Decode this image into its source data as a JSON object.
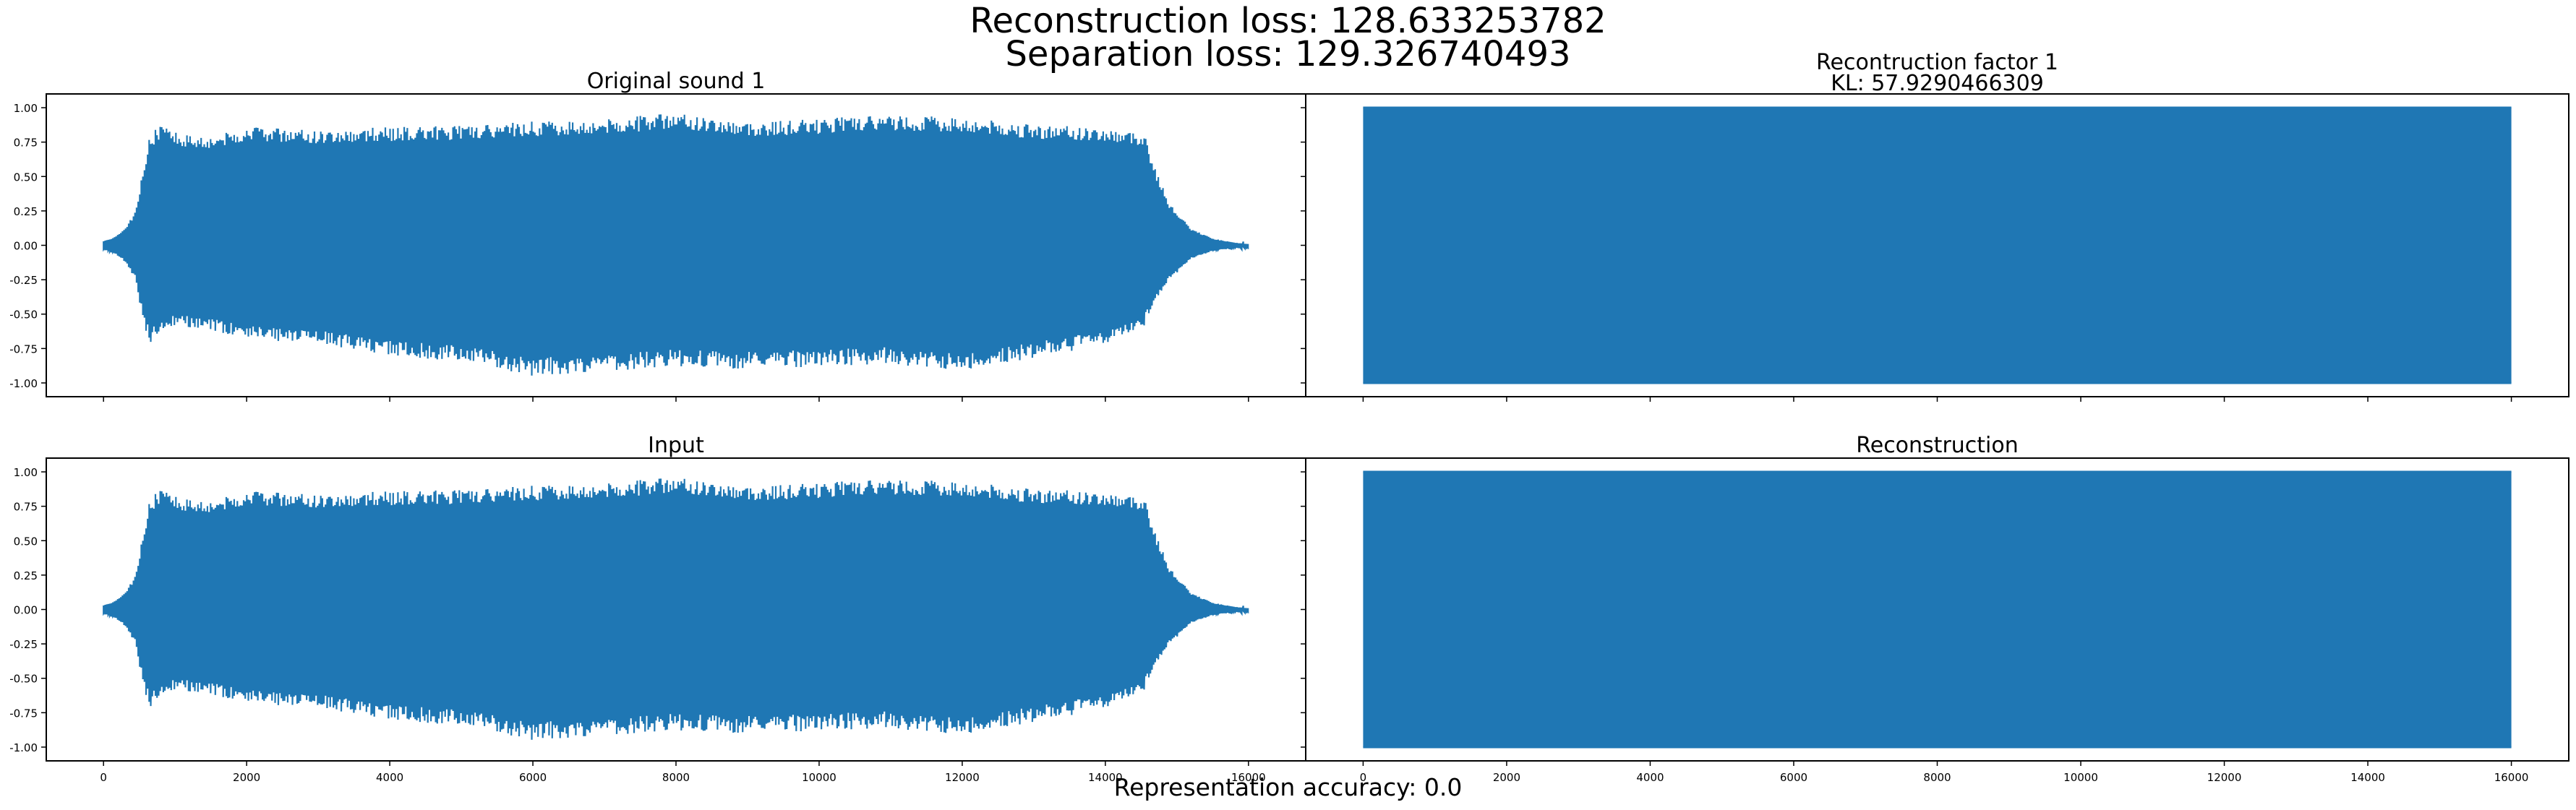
{
  "figure": {
    "suptitle_line1": "Reconstruction loss: 128.633253782",
    "suptitle_line2": "Separation loss: 129.326740493",
    "footer": "Representation accuracy: 0.0",
    "line_color": "#1f77b4"
  },
  "chart_data": [
    {
      "type": "line",
      "title": "Original sound 1",
      "subtitle": "",
      "xlim": [
        -800,
        16800
      ],
      "ylim": [
        -1.1,
        1.1
      ],
      "yticks": [
        "1.00",
        "0.75",
        "0.50",
        "0.25",
        "0.00",
        "-0.25",
        "-0.50",
        "-0.75",
        "-1.00"
      ],
      "xticks": [],
      "signal": "tonal",
      "envelope_x": [
        0,
        150,
        300,
        450,
        550,
        650,
        800,
        1000,
        1500,
        2000,
        3000,
        4000,
        5000,
        6000,
        7000,
        8000,
        9000,
        10000,
        11000,
        12000,
        13000,
        14000,
        14550,
        14700,
        14900,
        15200,
        15500,
        15800,
        16000
      ],
      "envelope_upper": [
        0.03,
        0.06,
        0.12,
        0.25,
        0.55,
        0.8,
        0.88,
        0.82,
        0.8,
        0.86,
        0.84,
        0.86,
        0.87,
        0.9,
        0.92,
        0.96,
        0.9,
        0.92,
        0.95,
        0.93,
        0.88,
        0.85,
        0.82,
        0.55,
        0.3,
        0.12,
        0.05,
        0.02,
        0.01
      ],
      "envelope_lower": [
        -0.03,
        -0.06,
        -0.12,
        -0.25,
        -0.55,
        -0.72,
        -0.62,
        -0.58,
        -0.62,
        -0.68,
        -0.72,
        -0.8,
        -0.85,
        -0.95,
        -0.92,
        -0.88,
        -0.9,
        -0.88,
        -0.86,
        -0.92,
        -0.82,
        -0.72,
        -0.58,
        -0.4,
        -0.25,
        -0.1,
        -0.04,
        -0.02,
        -0.01
      ]
    },
    {
      "type": "line",
      "title": "Recontruction factor 1",
      "subtitle": "KL: 57.9290466309",
      "xlim": [
        -800,
        16800
      ],
      "ylim": [
        -1.1,
        1.1
      ],
      "yticks": [],
      "xticks": [],
      "signal": "saturated",
      "envelope_x": [
        0,
        16000
      ],
      "envelope_upper": [
        1.0,
        1.0
      ],
      "envelope_lower": [
        -1.0,
        -1.0
      ]
    },
    {
      "type": "line",
      "title": "Input",
      "subtitle": "",
      "xlim": [
        -800,
        16800
      ],
      "ylim": [
        -1.1,
        1.1
      ],
      "yticks": [
        "1.00",
        "0.75",
        "0.50",
        "0.25",
        "0.00",
        "-0.25",
        "-0.50",
        "-0.75",
        "-1.00"
      ],
      "xticks": [
        "0",
        "2000",
        "4000",
        "6000",
        "8000",
        "10000",
        "12000",
        "14000",
        "16000"
      ],
      "signal": "tonal",
      "envelope_x": [
        0,
        150,
        300,
        450,
        550,
        650,
        800,
        1000,
        1500,
        2000,
        3000,
        4000,
        5000,
        6000,
        7000,
        8000,
        9000,
        10000,
        11000,
        12000,
        13000,
        14000,
        14550,
        14700,
        14900,
        15200,
        15500,
        15800,
        16000
      ],
      "envelope_upper": [
        0.03,
        0.06,
        0.12,
        0.25,
        0.55,
        0.8,
        0.88,
        0.82,
        0.8,
        0.86,
        0.84,
        0.86,
        0.87,
        0.9,
        0.92,
        0.96,
        0.9,
        0.92,
        0.95,
        0.93,
        0.88,
        0.85,
        0.82,
        0.55,
        0.3,
        0.12,
        0.05,
        0.02,
        0.01
      ],
      "envelope_lower": [
        -0.03,
        -0.06,
        -0.12,
        -0.25,
        -0.55,
        -0.72,
        -0.62,
        -0.58,
        -0.62,
        -0.68,
        -0.72,
        -0.8,
        -0.85,
        -0.95,
        -0.92,
        -0.88,
        -0.9,
        -0.88,
        -0.86,
        -0.92,
        -0.82,
        -0.72,
        -0.58,
        -0.4,
        -0.25,
        -0.1,
        -0.04,
        -0.02,
        -0.01
      ]
    },
    {
      "type": "line",
      "title": "Reconstruction",
      "subtitle": "",
      "xlim": [
        -800,
        16800
      ],
      "ylim": [
        -1.1,
        1.1
      ],
      "yticks": [],
      "xticks": [
        "0",
        "2000",
        "4000",
        "6000",
        "8000",
        "10000",
        "12000",
        "14000",
        "16000"
      ],
      "signal": "saturated",
      "envelope_x": [
        0,
        16000
      ],
      "envelope_upper": [
        1.0,
        1.0
      ],
      "envelope_lower": [
        -1.0,
        -1.0
      ]
    }
  ]
}
